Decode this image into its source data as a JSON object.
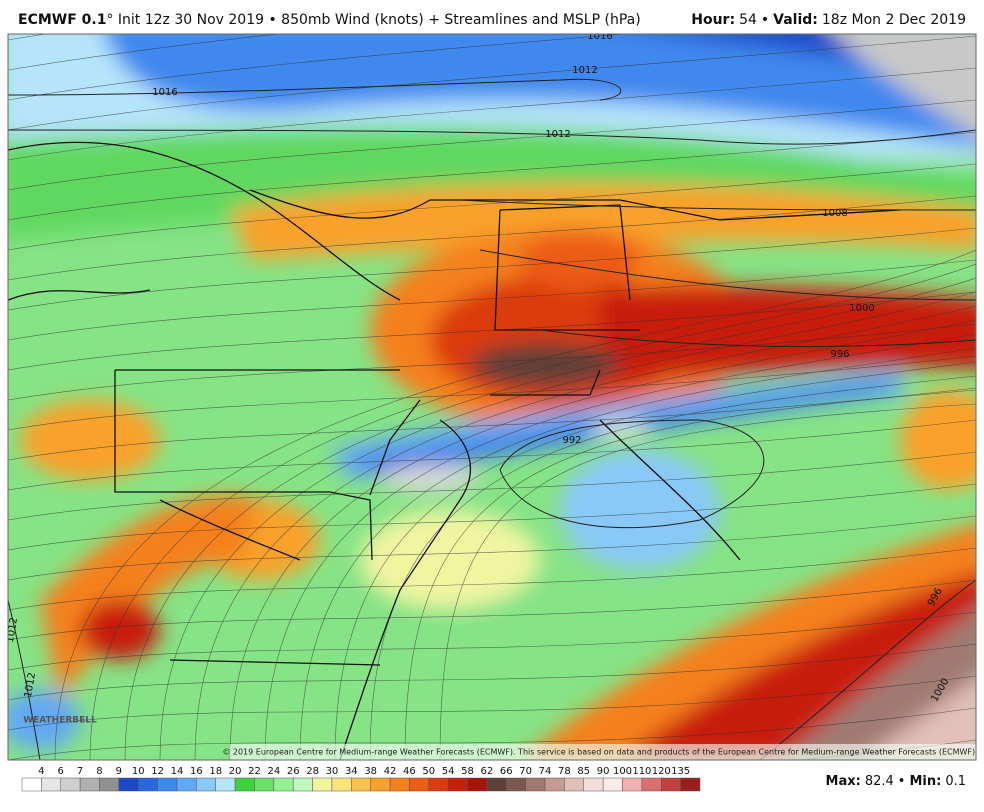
{
  "header": {
    "model": "ECMWF 0.1",
    "description": "° Init 12z 30 Nov 2019 • 850mb Wind (knots) + Streamlines and MSLP (hPa)",
    "hour_label": "Hour:",
    "hour": "54",
    "separator": "•",
    "valid_label": "Valid:",
    "valid": "18z Mon 2 Dec 2019"
  },
  "map": {
    "isobar_labels": [
      "1016",
      "1012",
      "1016",
      "1012",
      "1008",
      "1000",
      "996",
      "992",
      "996",
      "1000",
      "1012",
      "1012"
    ],
    "logo": "WEATHERBELL",
    "credit": "© 2019 European Centre for Medium-range Weather Forecasts (ECMWF). This service is based on data and products of the European Centre for Medium-range Weather Forecasts (ECMWF)."
  },
  "colorbar": {
    "labels": [
      4,
      6,
      7,
      8,
      9,
      10,
      12,
      14,
      16,
      18,
      20,
      22,
      24,
      26,
      28,
      30,
      34,
      38,
      42,
      46,
      50,
      54,
      58,
      62,
      66,
      70,
      74,
      78,
      85,
      90,
      100,
      110,
      120,
      135
    ],
    "colors": [
      "#ffffff",
      "#e6e6e6",
      "#cfcfcf",
      "#b0b0b0",
      "#909090",
      "#1c48c8",
      "#2a66e0",
      "#3f88ee",
      "#62a8f4",
      "#8ac8f8",
      "#b6e4fa",
      "#3fd23f",
      "#6ae26a",
      "#96ee96",
      "#c0f6c0",
      "#f0f5a0",
      "#fde37a",
      "#fcc24a",
      "#f9a12a",
      "#f4801c",
      "#ec5c14",
      "#dc3a10",
      "#c81e0e",
      "#a8120c",
      "#5e4038",
      "#7a5850",
      "#a07a72",
      "#c49c94",
      "#e2c0ba",
      "#f4dcd8",
      "#fbeae8",
      "#f0b0b0",
      "#d87070",
      "#c04040",
      "#9a1e1e"
    ]
  },
  "footer": {
    "max_label": "Max:",
    "max": "82.4",
    "separator": "•",
    "min_label": "Min:",
    "min": "0.1"
  }
}
